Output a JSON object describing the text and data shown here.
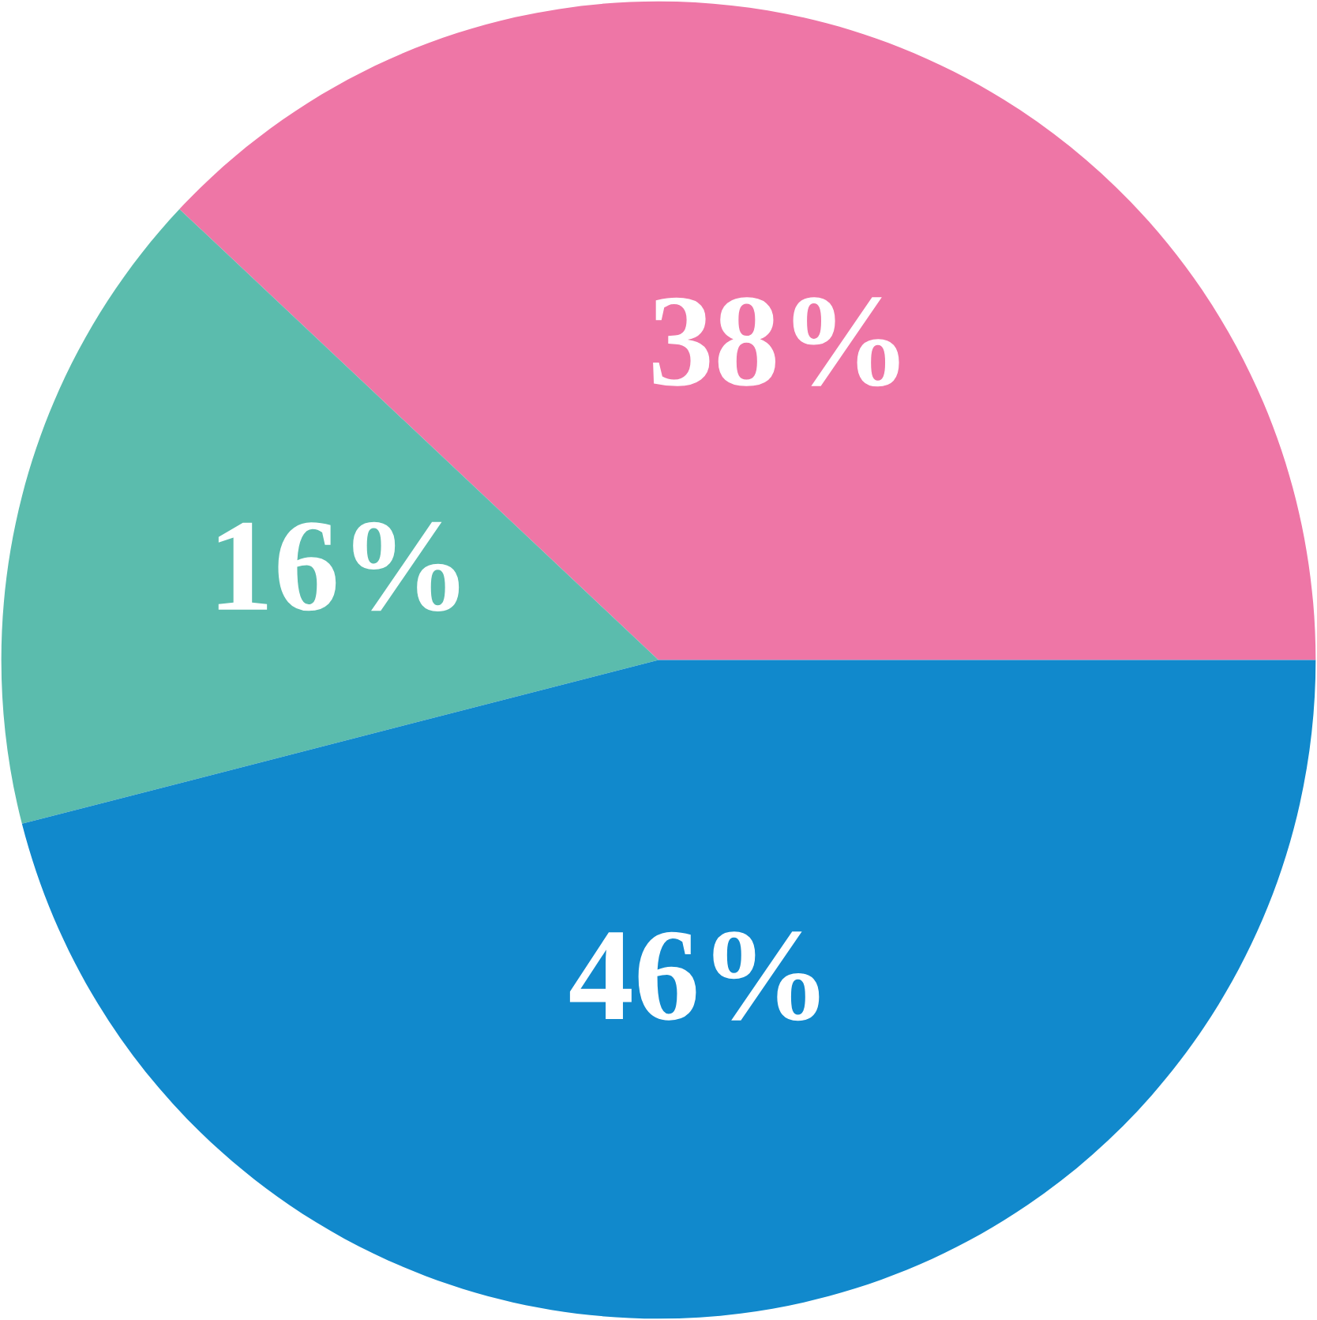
{
  "chart_data": {
    "type": "pie",
    "categories": [
      null,
      null,
      null
    ],
    "values": [
      38,
      16,
      46
    ],
    "colors": [
      "#ee76a6",
      "#5bbcad",
      "#1189cc"
    ],
    "value_labels": [
      "38%",
      "16%",
      "46%"
    ]
  }
}
